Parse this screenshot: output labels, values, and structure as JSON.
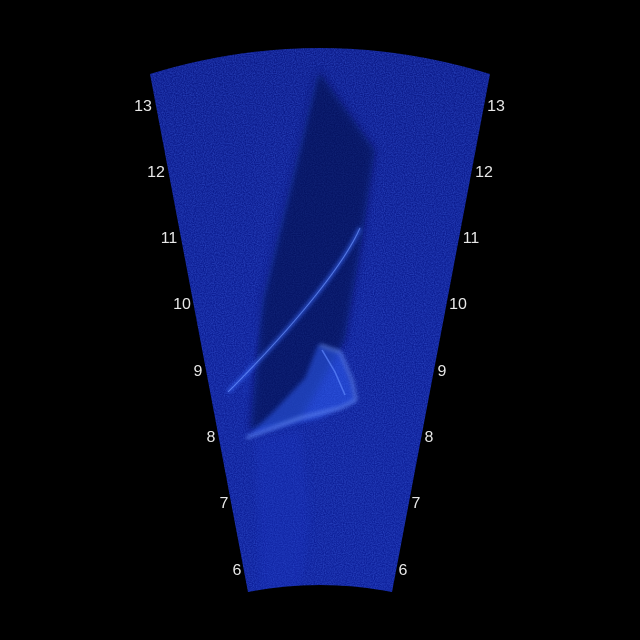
{
  "sonar": {
    "colors": {
      "background": "#000000",
      "fan_fill": "#0a1a8a",
      "fan_dark": "#06124f",
      "echo": "#3a6cff",
      "echo_bright": "#7da2ff",
      "label": "#e8e8e8"
    },
    "range_labels_left": [
      "13",
      "12",
      "11",
      "10",
      "9",
      "8",
      "7",
      "6"
    ],
    "range_labels_right": [
      "13",
      "12",
      "11",
      "10",
      "9",
      "8",
      "7",
      "6"
    ]
  }
}
